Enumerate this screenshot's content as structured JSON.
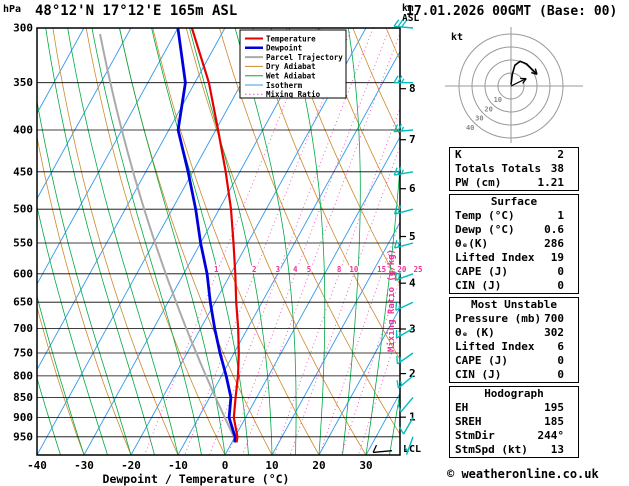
{
  "header": {
    "station": "48°12'N 17°12'E 165m ASL",
    "datetime": "17.01.2026 00GMT (Base: 00)",
    "pressure_unit": "hPa",
    "altitude_unit": [
      "km",
      "ASL"
    ]
  },
  "axes": {
    "xlabel": "Dewpoint / Temperature (°C)",
    "x_ticks": [
      -40,
      -30,
      -20,
      -10,
      0,
      10,
      20,
      30
    ],
    "pressure_ticks": [
      300,
      350,
      400,
      450,
      500,
      550,
      600,
      650,
      700,
      750,
      800,
      850,
      900,
      950
    ],
    "km_ticks": [
      {
        "km": 8,
        "p": 356
      },
      {
        "km": 7,
        "p": 411
      },
      {
        "km": 6,
        "p": 472
      },
      {
        "km": 5,
        "p": 540
      },
      {
        "km": 4,
        "p": 616
      },
      {
        "km": 3,
        "p": 701
      },
      {
        "km": 2,
        "p": 795
      },
      {
        "km": 1,
        "p": 899
      }
    ],
    "lcl_label": "LCL",
    "mixing_axis_label": "Mixing Ratio (g/kg)",
    "mixing_ratio_values": [
      1,
      2,
      3,
      4,
      5,
      8,
      10,
      15,
      20,
      25
    ]
  },
  "legend": [
    {
      "label": "Temperature",
      "color": "#e60000",
      "style": "solid",
      "width": 2
    },
    {
      "label": "Dewpoint",
      "color": "#0000dd",
      "style": "solid",
      "width": 2.5
    },
    {
      "label": "Parcel Trajectory",
      "color": "#aaaaaa",
      "style": "solid",
      "width": 2
    },
    {
      "label": "Dry Adiabat",
      "color": "#cc8a2e",
      "style": "solid",
      "width": 1
    },
    {
      "label": "Wet Adiabat",
      "color": "#00aa44",
      "style": "solid",
      "width": 1
    },
    {
      "label": "Isotherm",
      "color": "#3399ee",
      "style": "solid",
      "width": 1
    },
    {
      "label": "Mixing Ratio",
      "color": "#ee55bb",
      "style": "dotted",
      "width": 1
    }
  ],
  "colors": {
    "temperature": "#e60000",
    "dewpoint": "#0000dd",
    "parcel": "#aaaaaa",
    "dry_adiabat": "#cc8a2e",
    "wet_adiabat": "#00aa44",
    "isotherm": "#3399ee",
    "mixing_ratio": "#ee55bb",
    "mixing_label": "#ee3399",
    "wind_barb": "#00bcbc"
  },
  "chart_data": {
    "type": "skew-t-log-p",
    "pressure_range": [
      300,
      1000
    ],
    "temp_axis_range": [
      -40,
      40
    ],
    "sounding": {
      "pressure": [
        965,
        950,
        900,
        850,
        800,
        750,
        700,
        650,
        600,
        550,
        500,
        450,
        400,
        350,
        300
      ],
      "temperature": [
        1,
        0.5,
        -2.5,
        -4.5,
        -6.5,
        -9,
        -12,
        -15.5,
        -19,
        -23,
        -27.5,
        -33,
        -39.5,
        -47,
        -57
      ],
      "dewpoint": [
        0.6,
        0,
        -3.5,
        -5.5,
        -9,
        -13,
        -17,
        -21,
        -25,
        -30,
        -35,
        -41,
        -48,
        -52,
        -60
      ]
    },
    "parcel": {
      "start_pressure": 965,
      "start_temp": 1
    },
    "winds": [
      {
        "p": 950,
        "dir": 200,
        "spd": 5
      },
      {
        "p": 900,
        "dir": 210,
        "spd": 10
      },
      {
        "p": 850,
        "dir": 220,
        "spd": 10
      },
      {
        "p": 800,
        "dir": 230,
        "spd": 15
      },
      {
        "p": 750,
        "dir": 235,
        "spd": 15
      },
      {
        "p": 700,
        "dir": 240,
        "spd": 15
      },
      {
        "p": 650,
        "dir": 245,
        "spd": 15
      },
      {
        "p": 600,
        "dir": 250,
        "spd": 20
      },
      {
        "p": 550,
        "dir": 255,
        "spd": 20
      },
      {
        "p": 500,
        "dir": 255,
        "spd": 20
      },
      {
        "p": 450,
        "dir": 260,
        "spd": 25
      },
      {
        "p": 400,
        "dir": 265,
        "spd": 25
      },
      {
        "p": 350,
        "dir": 270,
        "spd": 25
      },
      {
        "p": 300,
        "dir": 275,
        "spd": 30
      }
    ],
    "surface_wind": {
      "p": 988,
      "dir": 265,
      "spd": 10
    }
  },
  "hodograph": {
    "unit_label": "kt",
    "rings": [
      10,
      20,
      30,
      40
    ],
    "trace_uv": [
      [
        0,
        1
      ],
      [
        1,
        9
      ],
      [
        3,
        16
      ],
      [
        7,
        19
      ],
      [
        12,
        17
      ],
      [
        16,
        13
      ],
      [
        20,
        9
      ]
    ],
    "storm_motion": {
      "dir": 244,
      "spd": 13
    }
  },
  "table": {
    "indices": {
      "rows": [
        [
          "K",
          "2"
        ],
        [
          "Totals Totals",
          "38"
        ],
        [
          "PW (cm)",
          "1.21"
        ]
      ]
    },
    "surface": {
      "title": "Surface",
      "rows": [
        [
          "Temp (°C)",
          "1"
        ],
        [
          "Dewp (°C)",
          "0.6"
        ],
        [
          "θₑ(K)",
          "286"
        ],
        [
          "Lifted Index",
          "19"
        ],
        [
          "CAPE (J)",
          "0"
        ],
        [
          "CIN (J)",
          "0"
        ]
      ]
    },
    "most_unstable": {
      "title": "Most Unstable",
      "rows": [
        [
          "Pressure (mb)",
          "700"
        ],
        [
          "θₑ (K)",
          "302"
        ],
        [
          "Lifted Index",
          "6"
        ],
        [
          "CAPE (J)",
          "0"
        ],
        [
          "CIN (J)",
          "0"
        ]
      ]
    },
    "hodograph_info": {
      "title": "Hodograph",
      "rows": [
        [
          "EH",
          "195"
        ],
        [
          "SREH",
          "185"
        ],
        [
          "StmDir",
          "244°"
        ],
        [
          "StmSpd (kt)",
          "13"
        ]
      ]
    }
  },
  "footer": {
    "copyright": "© weatheronline.co.uk"
  }
}
